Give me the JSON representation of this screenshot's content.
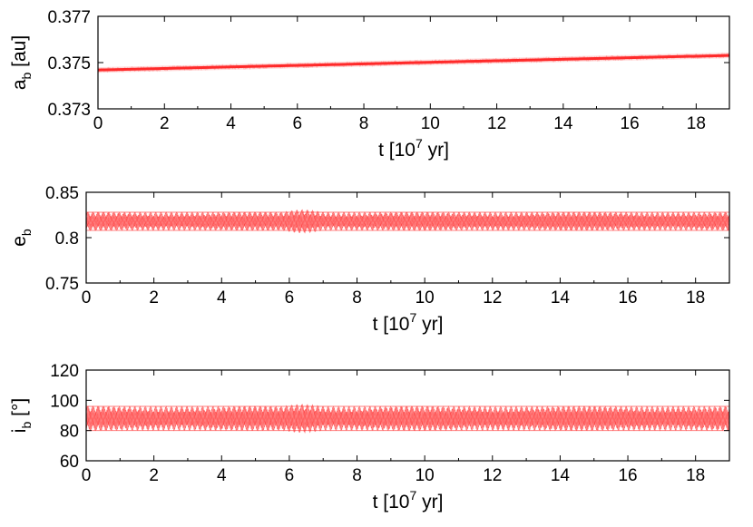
{
  "colors": {
    "series": "#ff2a2a",
    "axis": "#000000",
    "background": "#ffffff"
  },
  "chart_data": [
    {
      "type": "line",
      "xlim": [
        0,
        19
      ],
      "ylim": [
        0.373,
        0.377
      ],
      "x_ticks": [
        "0",
        "2",
        "4",
        "6",
        "8",
        "10",
        "12",
        "14",
        "16",
        "18"
      ],
      "y_ticks": [
        "0.373",
        "0.375",
        "0.377"
      ],
      "y_tick_values": [
        0.373,
        0.375,
        0.377
      ],
      "xlabel": {
        "main": "t [10",
        "sup": "7",
        "tail": " yr]"
      },
      "ylabel": {
        "main": "a",
        "sub": "b",
        "tail": " [au]"
      },
      "x": [
        0,
        19
      ],
      "y": [
        0.37468,
        0.37531
      ],
      "band_half_width": 0.00012,
      "oscillation": "narrow scatter band around mean trend",
      "grid": false
    },
    {
      "type": "line",
      "xlim": [
        0,
        19
      ],
      "ylim": [
        0.75,
        0.85
      ],
      "x_ticks": [
        "0",
        "2",
        "4",
        "6",
        "8",
        "10",
        "12",
        "14",
        "16",
        "18"
      ],
      "y_ticks": [
        "0.75",
        "0.8",
        "0.85"
      ],
      "y_tick_values": [
        0.75,
        0.8,
        0.85
      ],
      "xlabel": {
        "main": "t [10",
        "sup": "7",
        "tail": " yr]"
      },
      "ylabel": {
        "main": "e",
        "sub": "b",
        "tail": ""
      },
      "center": 0.818,
      "band_min": 0.808,
      "band_max": 0.828,
      "feature_window": [
        5.8,
        7.0
      ],
      "feature_min": 0.804,
      "feature_max": 0.83,
      "oscillation": "densely packed periodic oscillation band",
      "grid": false
    },
    {
      "type": "line",
      "xlim": [
        0,
        19
      ],
      "ylim": [
        60,
        120
      ],
      "x_ticks": [
        "0",
        "2",
        "4",
        "6",
        "8",
        "10",
        "12",
        "14",
        "16",
        "18"
      ],
      "y_ticks": [
        "60",
        "80",
        "100",
        "120"
      ],
      "y_tick_values": [
        60,
        80,
        100,
        120
      ],
      "xlabel": {
        "main": "t [10",
        "sup": "7",
        "tail": " yr]"
      },
      "ylabel": {
        "main": "i",
        "sub": "b",
        "tail": " [°]"
      },
      "center": 88,
      "band_min": 80,
      "band_max": 96,
      "feature_window": [
        5.8,
        7.0
      ],
      "feature_min": 78,
      "feature_max": 97,
      "oscillation": "densely packed periodic oscillation band",
      "grid": false
    }
  ]
}
